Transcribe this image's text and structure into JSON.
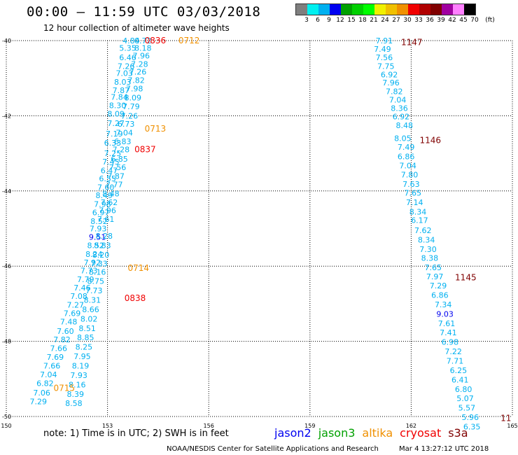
{
  "header": {
    "title": "00:00 – 11:59 UTC 03/03/2018",
    "subtitle": "12 hour collection of altimeter wave heights"
  },
  "legend": {
    "unit": "(ft)",
    "labels": [
      "3",
      "6",
      "9",
      "12",
      "15",
      "18",
      "21",
      "24",
      "27",
      "30",
      "33",
      "36",
      "39",
      "42",
      "45",
      "70"
    ],
    "colors": [
      "#7f7f7f",
      "#00f0f0",
      "#00b0f0",
      "#0000f0",
      "#00a000",
      "#00d000",
      "#00ff00",
      "#f0f000",
      "#f0c000",
      "#f09000",
      "#f00000",
      "#b00000",
      "#800000",
      "#a000a0",
      "#ff80ff",
      "#000000"
    ]
  },
  "axes": {
    "x_ticks": [
      "150",
      "153",
      "156",
      "159",
      "162",
      "165"
    ],
    "y_ticks": [
      "-40",
      "-42",
      "-44",
      "-46",
      "-48",
      "-50"
    ]
  },
  "chart_data": {
    "type": "scatter",
    "xlim": [
      150,
      165
    ],
    "ylim": [
      -50,
      -40
    ],
    "x_unit": "degrees longitude",
    "y_unit": "degrees latitude",
    "grid": true,
    "tracks": [
      {
        "satellite": "altika",
        "values": [
          {
            "lon": 153.7,
            "lat": -40.0,
            "v": "4.84",
            "c": "#00b0f0"
          },
          {
            "lon": 153.6,
            "lat": -40.2,
            "v": "5.35",
            "c": "#00b0f0"
          },
          {
            "lon": 153.6,
            "lat": -40.45,
            "v": "6.46",
            "c": "#00b0f0"
          },
          {
            "lon": 153.55,
            "lat": -40.68,
            "v": "7.26",
            "c": "#00b0f0"
          },
          {
            "lon": 153.5,
            "lat": -40.87,
            "v": "7.03",
            "c": "#00b0f0"
          },
          {
            "lon": 153.45,
            "lat": -41.1,
            "v": "8.03",
            "c": "#00b0f0"
          },
          {
            "lon": 153.4,
            "lat": -41.32,
            "v": "7.87",
            "c": "#00b0f0"
          },
          {
            "lon": 153.35,
            "lat": -41.5,
            "v": "7.84",
            "c": "#00b0f0"
          },
          {
            "lon": 153.3,
            "lat": -41.72,
            "v": "8.30",
            "c": "#00b0f0"
          },
          {
            "lon": 153.25,
            "lat": -41.95,
            "v": "8.09",
            "c": "#00b0f0"
          },
          {
            "lon": 153.25,
            "lat": -42.2,
            "v": "7.27",
            "c": "#00b0f0"
          },
          {
            "lon": 153.2,
            "lat": -42.48,
            "v": "7.19",
            "c": "#00b0f0"
          },
          {
            "lon": 153.15,
            "lat": -42.72,
            "v": "6.33",
            "c": "#00b0f0"
          },
          {
            "lon": 153.15,
            "lat": -43.0,
            "v": "7.25",
            "c": "#00b0f0"
          },
          {
            "lon": 153.1,
            "lat": -43.22,
            "v": "7.45",
            "c": "#00b0f0"
          },
          {
            "lon": 153.05,
            "lat": -43.45,
            "v": "6.47",
            "c": "#00b0f0"
          },
          {
            "lon": 153.0,
            "lat": -43.67,
            "v": "6.55",
            "c": "#00b0f0"
          },
          {
            "lon": 152.95,
            "lat": -43.9,
            "v": "7.60",
            "c": "#00b0f0"
          },
          {
            "lon": 152.9,
            "lat": -44.12,
            "v": "8.49",
            "c": "#00b0f0"
          },
          {
            "lon": 152.85,
            "lat": -44.35,
            "v": "7.98",
            "c": "#00b0f0"
          },
          {
            "lon": 152.8,
            "lat": -44.57,
            "v": "6.97",
            "c": "#00b0f0"
          },
          {
            "lon": 152.75,
            "lat": -44.8,
            "v": "8.52",
            "c": "#00b0f0"
          },
          {
            "lon": 152.72,
            "lat": -45.0,
            "v": "7.93",
            "c": "#00b0f0"
          },
          {
            "lon": 152.7,
            "lat": -45.22,
            "v": "9.51",
            "c": "#0000f0"
          },
          {
            "lon": 152.65,
            "lat": -45.45,
            "v": "8.52",
            "c": "#00b0f0"
          },
          {
            "lon": 152.6,
            "lat": -45.68,
            "v": "8.24",
            "c": "#00b0f0"
          },
          {
            "lon": 152.55,
            "lat": -45.9,
            "v": "7.92",
            "c": "#00b0f0"
          },
          {
            "lon": 152.45,
            "lat": -46.12,
            "v": "7.73",
            "c": "#00b0f0"
          },
          {
            "lon": 152.35,
            "lat": -46.35,
            "v": "7.79",
            "c": "#00b0f0"
          },
          {
            "lon": 152.25,
            "lat": -46.57,
            "v": "7.46",
            "c": "#00b0f0"
          },
          {
            "lon": 152.15,
            "lat": -46.8,
            "v": "7.08",
            "c": "#00b0f0"
          },
          {
            "lon": 152.05,
            "lat": -47.03,
            "v": "7.27",
            "c": "#00b0f0"
          },
          {
            "lon": 151.95,
            "lat": -47.25,
            "v": "7.69",
            "c": "#00b0f0"
          },
          {
            "lon": 151.85,
            "lat": -47.48,
            "v": "7.48",
            "c": "#00b0f0"
          },
          {
            "lon": 151.75,
            "lat": -47.73,
            "v": "7.60",
            "c": "#00b0f0"
          },
          {
            "lon": 151.65,
            "lat": -47.95,
            "v": "7.82",
            "c": "#00b0f0"
          },
          {
            "lon": 151.55,
            "lat": -48.18,
            "v": "7.66",
            "c": "#00b0f0"
          },
          {
            "lon": 151.45,
            "lat": -48.42,
            "v": "7.69",
            "c": "#00b0f0"
          },
          {
            "lon": 151.35,
            "lat": -48.65,
            "v": "7.66",
            "c": "#00b0f0"
          },
          {
            "lon": 151.25,
            "lat": -48.88,
            "v": "7.04",
            "c": "#00b0f0"
          },
          {
            "lon": 151.15,
            "lat": -49.12,
            "v": "6.82",
            "c": "#00b0f0"
          },
          {
            "lon": 151.05,
            "lat": -49.37,
            "v": "7.06",
            "c": "#00b0f0"
          },
          {
            "lon": 150.95,
            "lat": -49.6,
            "v": "7.29",
            "c": "#00b0f0"
          }
        ]
      },
      {
        "satellite": "cryosat",
        "values": [
          {
            "lon": 154.05,
            "lat": -40.0,
            "v": "0.72",
            "c": "#00b0f0"
          },
          {
            "lon": 154.05,
            "lat": -40.2,
            "v": "8.18",
            "c": "#00b0f0"
          },
          {
            "lon": 154.0,
            "lat": -40.4,
            "v": "7.96",
            "c": "#00b0f0"
          },
          {
            "lon": 153.95,
            "lat": -40.62,
            "v": "7.28",
            "c": "#00b0f0"
          },
          {
            "lon": 153.9,
            "lat": -40.83,
            "v": "7.26",
            "c": "#00b0f0"
          },
          {
            "lon": 153.85,
            "lat": -41.05,
            "v": "7.82",
            "c": "#00b0f0"
          },
          {
            "lon": 153.8,
            "lat": -41.28,
            "v": "7.98",
            "c": "#00b0f0"
          },
          {
            "lon": 153.75,
            "lat": -41.52,
            "v": "8.09",
            "c": "#00b0f0"
          },
          {
            "lon": 153.7,
            "lat": -41.75,
            "v": "7.79",
            "c": "#00b0f0"
          },
          {
            "lon": 153.65,
            "lat": -42.0,
            "v": "7.26",
            "c": "#00b0f0"
          },
          {
            "lon": 153.55,
            "lat": -42.22,
            "v": "6.73",
            "c": "#00b0f0"
          },
          {
            "lon": 153.5,
            "lat": -42.45,
            "v": "7.04",
            "c": "#00b0f0"
          },
          {
            "lon": 153.45,
            "lat": -42.68,
            "v": "6.83",
            "c": "#00b0f0"
          },
          {
            "lon": 153.4,
            "lat": -42.9,
            "v": "7.28",
            "c": "#00b0f0"
          },
          {
            "lon": 153.35,
            "lat": -43.15,
            "v": "6.85",
            "c": "#00b0f0"
          },
          {
            "lon": 153.3,
            "lat": -43.37,
            "v": "7.56",
            "c": "#00b0f0"
          },
          {
            "lon": 153.25,
            "lat": -43.6,
            "v": "7.87",
            "c": "#00b0f0"
          },
          {
            "lon": 153.2,
            "lat": -43.83,
            "v": "7.77",
            "c": "#00b0f0"
          },
          {
            "lon": 153.1,
            "lat": -44.07,
            "v": "8.48",
            "c": "#00b0f0"
          },
          {
            "lon": 153.05,
            "lat": -44.3,
            "v": "7.62",
            "c": "#00b0f0"
          },
          {
            "lon": 153.0,
            "lat": -44.52,
            "v": "7.96",
            "c": "#00b0f0"
          },
          {
            "lon": 152.95,
            "lat": -44.75,
            "v": "7.61",
            "c": "#00b0f0"
          },
          {
            "lon": 152.9,
            "lat": -45.2,
            "v": "8.28",
            "c": "#00b0f0"
          },
          {
            "lon": 152.85,
            "lat": -45.45,
            "v": "8.83",
            "c": "#00b0f0"
          },
          {
            "lon": 152.8,
            "lat": -45.7,
            "v": "8.20",
            "c": "#00b0f0"
          },
          {
            "lon": 152.75,
            "lat": -45.93,
            "v": "7.33",
            "c": "#00b0f0"
          },
          {
            "lon": 152.7,
            "lat": -46.15,
            "v": "8.16",
            "c": "#00b0f0"
          },
          {
            "lon": 152.65,
            "lat": -46.4,
            "v": "8.75",
            "c": "#00b0f0"
          },
          {
            "lon": 152.6,
            "lat": -46.65,
            "v": "7.73",
            "c": "#00b0f0"
          },
          {
            "lon": 152.55,
            "lat": -46.9,
            "v": "8.31",
            "c": "#00b0f0"
          },
          {
            "lon": 152.5,
            "lat": -47.15,
            "v": "8.66",
            "c": "#00b0f0"
          },
          {
            "lon": 152.45,
            "lat": -47.4,
            "v": "8.02",
            "c": "#00b0f0"
          },
          {
            "lon": 152.4,
            "lat": -47.65,
            "v": "8.51",
            "c": "#00b0f0"
          },
          {
            "lon": 152.35,
            "lat": -47.9,
            "v": "8.85",
            "c": "#00b0f0"
          },
          {
            "lon": 152.3,
            "lat": -48.15,
            "v": "8.25",
            "c": "#00b0f0"
          },
          {
            "lon": 152.25,
            "lat": -48.4,
            "v": "7.95",
            "c": "#00b0f0"
          },
          {
            "lon": 152.2,
            "lat": -48.65,
            "v": "8.19",
            "c": "#00b0f0"
          },
          {
            "lon": 152.15,
            "lat": -48.9,
            "v": "7.93",
            "c": "#00b0f0"
          },
          {
            "lon": 152.1,
            "lat": -49.15,
            "v": "8.16",
            "c": "#00b0f0"
          },
          {
            "lon": 152.05,
            "lat": -49.4,
            "v": "8.39",
            "c": "#00b0f0"
          },
          {
            "lon": 152.0,
            "lat": -49.65,
            "v": "8.58",
            "c": "#00b0f0"
          }
        ]
      },
      {
        "satellite": "s3a",
        "values": [
          {
            "lon": 161.2,
            "lat": -40.0,
            "v": "7.91",
            "c": "#00b0f0"
          },
          {
            "lon": 161.15,
            "lat": -40.22,
            "v": "7.49",
            "c": "#00b0f0"
          },
          {
            "lon": 161.2,
            "lat": -40.45,
            "v": "7.56",
            "c": "#00b0f0"
          },
          {
            "lon": 161.25,
            "lat": -40.68,
            "v": "7.75",
            "c": "#00b0f0"
          },
          {
            "lon": 161.35,
            "lat": -40.9,
            "v": "6.92",
            "c": "#00b0f0"
          },
          {
            "lon": 161.4,
            "lat": -41.12,
            "v": "7.96",
            "c": "#00b0f0"
          },
          {
            "lon": 161.5,
            "lat": -41.35,
            "v": "7.82",
            "c": "#00b0f0"
          },
          {
            "lon": 161.6,
            "lat": -41.57,
            "v": "7.04",
            "c": "#00b0f0"
          },
          {
            "lon": 161.65,
            "lat": -41.8,
            "v": "8.36",
            "c": "#00b0f0"
          },
          {
            "lon": 161.7,
            "lat": -42.02,
            "v": "6.92",
            "c": "#00b0f0"
          },
          {
            "lon": 161.8,
            "lat": -42.25,
            "v": "8.48",
            "c": "#00b0f0"
          },
          {
            "lon": 161.75,
            "lat": -42.6,
            "v": "8.05",
            "c": "#00b0f0"
          },
          {
            "lon": 161.85,
            "lat": -42.83,
            "v": "7.49",
            "c": "#00b0f0"
          },
          {
            "lon": 161.85,
            "lat": -43.08,
            "v": "6.86",
            "c": "#00b0f0"
          },
          {
            "lon": 161.9,
            "lat": -43.32,
            "v": "7.04",
            "c": "#00b0f0"
          },
          {
            "lon": 161.95,
            "lat": -43.57,
            "v": "7.80",
            "c": "#00b0f0"
          },
          {
            "lon": 162.0,
            "lat": -43.82,
            "v": "7.63",
            "c": "#00b0f0"
          },
          {
            "lon": 162.05,
            "lat": -44.05,
            "v": "7.65",
            "c": "#00b0f0"
          },
          {
            "lon": 162.1,
            "lat": -44.3,
            "v": "7.14",
            "c": "#00b0f0"
          },
          {
            "lon": 162.2,
            "lat": -44.55,
            "v": "8.34",
            "c": "#00b0f0"
          },
          {
            "lon": 162.25,
            "lat": -44.78,
            "v": "6.17",
            "c": "#00b0f0"
          },
          {
            "lon": 162.35,
            "lat": -45.05,
            "v": "7.62",
            "c": "#00b0f0"
          },
          {
            "lon": 162.45,
            "lat": -45.3,
            "v": "8.34",
            "c": "#00b0f0"
          },
          {
            "lon": 162.5,
            "lat": -45.55,
            "v": "7.30",
            "c": "#00b0f0"
          },
          {
            "lon": 162.55,
            "lat": -45.78,
            "v": "8.38",
            "c": "#00b0f0"
          },
          {
            "lon": 162.65,
            "lat": -46.03,
            "v": "7.65",
            "c": "#00b0f0"
          },
          {
            "lon": 162.7,
            "lat": -46.28,
            "v": "7.97",
            "c": "#00b0f0"
          },
          {
            "lon": 162.8,
            "lat": -46.52,
            "v": "7.29",
            "c": "#00b0f0"
          },
          {
            "lon": 162.85,
            "lat": -46.77,
            "v": "6.86",
            "c": "#00b0f0"
          },
          {
            "lon": 162.95,
            "lat": -47.02,
            "v": "7.34",
            "c": "#00b0f0"
          },
          {
            "lon": 163.0,
            "lat": -47.27,
            "v": "9.03",
            "c": "#0000f0"
          },
          {
            "lon": 163.05,
            "lat": -47.52,
            "v": "7.61",
            "c": "#00b0f0"
          },
          {
            "lon": 163.1,
            "lat": -47.77,
            "v": "7.41",
            "c": "#00b0f0"
          },
          {
            "lon": 163.15,
            "lat": -48.02,
            "v": "6.98",
            "c": "#00b0f0"
          },
          {
            "lon": 163.25,
            "lat": -48.27,
            "v": "7.22",
            "c": "#00b0f0"
          },
          {
            "lon": 163.3,
            "lat": -48.52,
            "v": "7.71",
            "c": "#00b0f0"
          },
          {
            "lon": 163.4,
            "lat": -48.77,
            "v": "6.25",
            "c": "#00b0f0"
          },
          {
            "lon": 163.45,
            "lat": -49.02,
            "v": "6.41",
            "c": "#00b0f0"
          },
          {
            "lon": 163.55,
            "lat": -49.27,
            "v": "6.80",
            "c": "#00b0f0"
          },
          {
            "lon": 163.6,
            "lat": -49.52,
            "v": "5.07",
            "c": "#00b0f0"
          },
          {
            "lon": 163.65,
            "lat": -49.77,
            "v": "5.57",
            "c": "#00b0f0"
          },
          {
            "lon": 163.75,
            "lat": -50.02,
            "v": "5.96",
            "c": "#00b0f0"
          },
          {
            "lon": 163.8,
            "lat": -50.27,
            "v": "6.35",
            "c": "#00b0f0"
          }
        ]
      }
    ],
    "time_labels": [
      {
        "lon": 154.1,
        "lat": -40.0,
        "t": "0836",
        "c": "#f00000"
      },
      {
        "lon": 155.1,
        "lat": -40.0,
        "t": "0712",
        "c": "#f09000"
      },
      {
        "lon": 154.1,
        "lat": -42.35,
        "t": "0713",
        "c": "#f09000"
      },
      {
        "lon": 153.8,
        "lat": -42.9,
        "t": "0837",
        "c": "#f00000"
      },
      {
        "lon": 153.6,
        "lat": -46.05,
        "v": "",
        "t": "0714",
        "c": "#f09000"
      },
      {
        "lon": 153.5,
        "lat": -46.85,
        "t": "0838",
        "c": "#f00000"
      },
      {
        "lon": 151.4,
        "lat": -49.25,
        "t": "0715",
        "c": "#f09000"
      },
      {
        "lon": 161.7,
        "lat": -40.05,
        "t": "1147",
        "c": "#800000"
      },
      {
        "lon": 162.25,
        "lat": -42.65,
        "t": "1146",
        "c": "#800000"
      },
      {
        "lon": 163.3,
        "lat": -46.3,
        "t": "1145",
        "c": "#800000"
      },
      {
        "lon": 164.65,
        "lat": -50.05,
        "t": "11",
        "c": "#800000"
      }
    ]
  },
  "notes": {
    "note": "note: 1) Time is in UTC; 2) SWH is in feet",
    "satellites": [
      {
        "name": "jason2",
        "color": "#0000f0"
      },
      {
        "name": "jason3",
        "color": "#00a000"
      },
      {
        "name": "altika",
        "color": "#f09000"
      },
      {
        "name": "cryosat",
        "color": "#f00000"
      },
      {
        "name": "s3a",
        "color": "#800000"
      }
    ],
    "footer_left": "NOAA/NESDIS Center for Satellite Applications and Research",
    "footer_right": "Mar  4 13:27:12 UTC 2018"
  }
}
